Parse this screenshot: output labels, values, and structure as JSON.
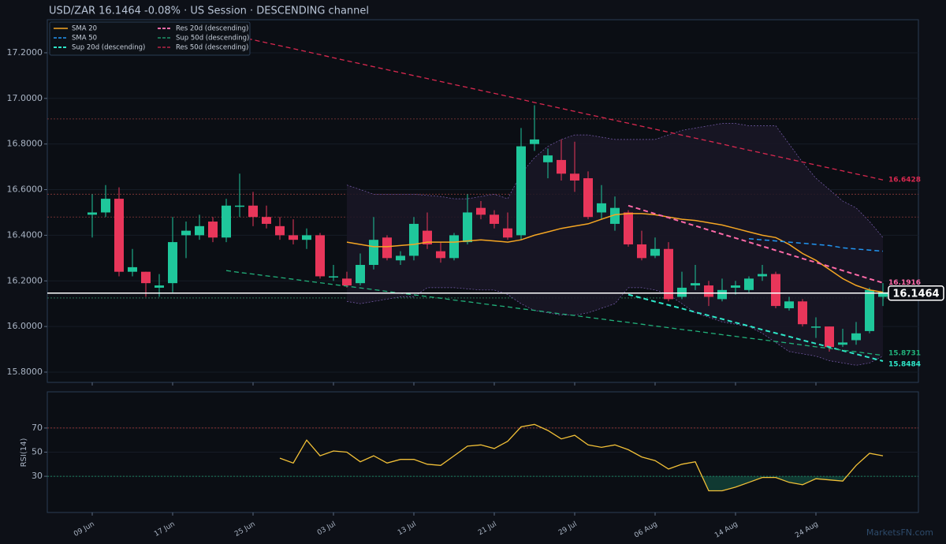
{
  "chart_data": [
    {
      "type": "candlestick",
      "title": "USD/ZAR   16.1464   -0.08%  ·  US Session  ·  DESCENDING channel",
      "price": 16.1464,
      "categories": [
        "09 Jun",
        null,
        null,
        null,
        null,
        null,
        "17 Jun",
        null,
        null,
        null,
        null,
        null,
        "25 Jun",
        null,
        null,
        null,
        null,
        null,
        "03 Jul",
        null,
        null,
        null,
        null,
        null,
        "13 Jul",
        null,
        null,
        null,
        null,
        null,
        "21 Jul",
        null,
        null,
        null,
        null,
        null,
        "29 Jul",
        null,
        null,
        null,
        null,
        null,
        "06 Aug",
        null,
        null,
        null,
        null,
        null,
        "14 Aug",
        null,
        null,
        null,
        null,
        null,
        "24 Aug",
        null,
        null,
        null,
        null,
        null
      ],
      "open": [
        16.49,
        16.5,
        16.56,
        16.24,
        16.24,
        16.17,
        16.19,
        16.4,
        16.4,
        16.46,
        16.39,
        16.53,
        16.53,
        16.48,
        16.44,
        16.4,
        16.38,
        16.4,
        16.22,
        16.21,
        16.19,
        16.27,
        16.39,
        16.29,
        16.31,
        16.42,
        16.33,
        16.3,
        16.37,
        16.52,
        16.49,
        16.43,
        16.4,
        16.8,
        16.72,
        16.73,
        16.67,
        16.65,
        16.5,
        16.45,
        16.5,
        16.36,
        16.31,
        16.34,
        16.13,
        16.18,
        16.18,
        16.12,
        16.17,
        16.16,
        16.22,
        16.23,
        16.08,
        16.11,
        16.0,
        16.0,
        15.92,
        15.94,
        15.98,
        16.13
      ],
      "high": [
        16.58,
        16.62,
        16.61,
        16.34,
        16.24,
        16.23,
        16.48,
        16.46,
        16.49,
        16.48,
        16.56,
        16.67,
        16.59,
        16.53,
        16.48,
        16.47,
        16.43,
        16.41,
        16.27,
        16.24,
        16.32,
        16.48,
        16.4,
        16.33,
        16.48,
        16.5,
        16.37,
        16.41,
        16.58,
        16.55,
        16.51,
        16.5,
        16.87,
        16.97,
        16.78,
        16.82,
        16.81,
        16.68,
        16.62,
        16.57,
        16.51,
        16.42,
        16.39,
        16.37,
        16.24,
        16.27,
        16.2,
        16.21,
        16.2,
        16.22,
        16.27,
        16.24,
        16.13,
        16.12,
        16.04,
        16.0,
        15.99,
        16.02,
        16.17,
        16.19
      ],
      "low": [
        16.39,
        16.48,
        16.22,
        16.22,
        16.13,
        16.13,
        16.15,
        16.3,
        16.38,
        16.37,
        16.37,
        16.48,
        16.44,
        16.43,
        16.38,
        16.36,
        16.34,
        16.21,
        16.2,
        16.17,
        16.18,
        16.25,
        16.29,
        16.27,
        16.29,
        16.34,
        16.28,
        16.29,
        16.36,
        16.47,
        16.43,
        16.38,
        16.38,
        16.77,
        16.65,
        16.64,
        16.59,
        16.47,
        16.47,
        16.42,
        16.35,
        16.29,
        16.3,
        16.11,
        16.12,
        16.16,
        16.09,
        16.11,
        16.14,
        16.15,
        16.2,
        16.08,
        16.07,
        16.0,
        15.95,
        15.89,
        15.91,
        15.92,
        15.97,
        16.09
      ],
      "close": [
        16.5,
        16.56,
        16.24,
        16.26,
        16.19,
        16.18,
        16.37,
        16.42,
        16.44,
        16.39,
        16.53,
        16.53,
        16.48,
        16.45,
        16.4,
        16.38,
        16.4,
        16.22,
        16.22,
        16.18,
        16.27,
        16.38,
        16.3,
        16.31,
        16.45,
        16.36,
        16.3,
        16.4,
        16.5,
        16.49,
        16.45,
        16.39,
        16.79,
        16.82,
        16.75,
        16.67,
        16.64,
        16.48,
        16.54,
        16.52,
        16.36,
        16.3,
        16.34,
        16.12,
        16.17,
        16.19,
        16.13,
        16.16,
        16.18,
        16.21,
        16.23,
        16.09,
        16.11,
        16.01,
        16.0,
        15.91,
        15.93,
        15.97,
        16.16,
        16.15
      ],
      "up_color": "#1fc79b",
      "down_color": "#e8365a",
      "band": {
        "color": "#7a5fb0",
        "upper": [
          null,
          null,
          null,
          null,
          null,
          null,
          null,
          null,
          null,
          null,
          null,
          null,
          null,
          null,
          null,
          null,
          null,
          null,
          null,
          16.62,
          16.6,
          16.58,
          16.58,
          16.58,
          16.58,
          16.575,
          16.57,
          16.56,
          16.56,
          16.57,
          16.58,
          16.56,
          16.67,
          16.74,
          16.79,
          16.82,
          16.84,
          16.84,
          16.83,
          16.82,
          16.82,
          16.82,
          16.82,
          16.84,
          16.86,
          16.87,
          16.88,
          16.89,
          16.89,
          16.88,
          16.88,
          16.88,
          16.8,
          16.72,
          16.65,
          16.6,
          16.55,
          16.52,
          16.46,
          16.39
        ],
        "lower": [
          null,
          null,
          null,
          null,
          null,
          null,
          null,
          null,
          null,
          null,
          null,
          null,
          null,
          null,
          null,
          null,
          null,
          null,
          null,
          16.11,
          16.1,
          16.11,
          16.12,
          16.13,
          16.13,
          16.17,
          16.17,
          16.17,
          16.165,
          16.16,
          16.16,
          16.14,
          16.1,
          16.07,
          16.06,
          16.05,
          16.05,
          16.06,
          16.08,
          16.1,
          16.17,
          16.17,
          16.16,
          16.14,
          16.1,
          16.06,
          16.04,
          16.02,
          16.01,
          16.0,
          15.97,
          15.93,
          15.89,
          15.88,
          15.87,
          15.85,
          15.84,
          15.83,
          15.84,
          15.87
        ]
      },
      "series": [
        {
          "name": "SMA 20",
          "color": "#f5a623",
          "style": "solid",
          "width": 1.5,
          "values": [
            null,
            null,
            null,
            null,
            null,
            null,
            null,
            null,
            null,
            null,
            null,
            null,
            null,
            null,
            null,
            null,
            null,
            null,
            null,
            16.37,
            16.36,
            16.35,
            16.35,
            16.355,
            16.36,
            16.37,
            16.37,
            16.37,
            16.375,
            16.38,
            16.375,
            16.37,
            16.38,
            16.4,
            16.415,
            16.43,
            16.44,
            16.45,
            16.47,
            16.49,
            16.495,
            16.495,
            16.49,
            16.48,
            16.47,
            16.465,
            16.455,
            16.445,
            16.43,
            16.415,
            16.4,
            16.39,
            16.36,
            16.32,
            16.29,
            16.25,
            16.21,
            16.18,
            16.16,
            16.15
          ]
        },
        {
          "name": "SMA 50",
          "color": "#2196f3",
          "style": "dashed",
          "width": 1.5,
          "values": [
            null,
            null,
            null,
            null,
            null,
            null,
            null,
            null,
            null,
            null,
            null,
            null,
            null,
            null,
            null,
            null,
            null,
            null,
            null,
            null,
            null,
            null,
            null,
            null,
            null,
            null,
            null,
            null,
            null,
            null,
            null,
            null,
            null,
            null,
            null,
            null,
            null,
            null,
            null,
            null,
            null,
            null,
            null,
            null,
            null,
            null,
            null,
            null,
            null,
            16.385,
            16.38,
            16.375,
            16.37,
            16.365,
            16.36,
            16.355,
            16.345,
            16.34,
            16.335,
            16.33
          ]
        },
        {
          "name": "Sup 20d (descending)",
          "color": "#2ee6c8",
          "style": "dashed",
          "width": 2,
          "values": [
            null,
            null,
            null,
            null,
            null,
            null,
            null,
            null,
            null,
            null,
            null,
            null,
            null,
            null,
            null,
            null,
            null,
            null,
            null,
            null,
            null,
            null,
            null,
            null,
            null,
            null,
            null,
            null,
            null,
            null,
            null,
            null,
            null,
            null,
            null,
            null,
            null,
            null,
            null,
            null,
            16.14,
            16.125,
            16.109,
            16.094,
            16.079,
            16.063,
            16.048,
            16.033,
            16.017,
            16.002,
            15.986,
            15.971,
            15.956,
            15.94,
            15.925,
            15.91,
            15.894,
            15.879,
            15.864,
            15.8484
          ]
        },
        {
          "name": "Res 20d (descending)",
          "color": "#ff6aa8",
          "style": "dashed",
          "width": 2,
          "values": [
            null,
            null,
            null,
            null,
            null,
            null,
            null,
            null,
            null,
            null,
            null,
            null,
            null,
            null,
            null,
            null,
            null,
            null,
            null,
            null,
            null,
            null,
            null,
            null,
            null,
            null,
            null,
            null,
            null,
            null,
            null,
            null,
            null,
            null,
            null,
            null,
            null,
            null,
            null,
            null,
            16.53,
            16.512,
            16.494,
            16.477,
            16.459,
            16.441,
            16.423,
            16.405,
            16.388,
            16.37,
            16.352,
            16.334,
            16.316,
            16.298,
            16.281,
            16.263,
            16.245,
            16.227,
            16.209,
            16.1916
          ]
        },
        {
          "name": "Sup 50d (descending)",
          "color": "#21b07a",
          "style": "dashed",
          "width": 1.3,
          "values": [
            null,
            null,
            null,
            null,
            null,
            null,
            null,
            null,
            null,
            null,
            16.245,
            16.237,
            16.23,
            16.222,
            16.215,
            16.207,
            16.199,
            16.192,
            16.184,
            16.177,
            16.169,
            16.162,
            16.154,
            16.146,
            16.139,
            16.131,
            16.124,
            16.116,
            16.109,
            16.101,
            16.093,
            16.086,
            16.078,
            16.071,
            16.063,
            16.055,
            16.048,
            16.04,
            16.033,
            16.025,
            16.018,
            16.01,
            16.002,
            15.995,
            15.987,
            15.98,
            15.972,
            15.964,
            15.957,
            15.949,
            15.942,
            15.934,
            15.927,
            15.919,
            15.911,
            15.904,
            15.896,
            15.889,
            15.881,
            15.8731
          ]
        },
        {
          "name": "Res 50d (descending)",
          "color": "#d8284f",
          "style": "dashed",
          "width": 1.3,
          "values": [
            null,
            null,
            null,
            null,
            null,
            null,
            null,
            null,
            null,
            null,
            null,
            17.27,
            17.257,
            17.244,
            17.231,
            17.218,
            17.205,
            17.192,
            17.178,
            17.165,
            17.152,
            17.139,
            17.126,
            17.113,
            17.1,
            17.087,
            17.074,
            17.061,
            17.048,
            17.035,
            17.022,
            17.009,
            16.996,
            16.982,
            16.969,
            16.956,
            16.943,
            16.93,
            16.917,
            16.904,
            16.891,
            16.878,
            16.865,
            16.852,
            16.839,
            16.826,
            16.813,
            16.8,
            16.786,
            16.773,
            16.76,
            16.747,
            16.734,
            16.721,
            16.708,
            16.695,
            16.682,
            16.669,
            16.656,
            16.6428
          ]
        }
      ],
      "levels": [
        {
          "value": 16.91,
          "color": "#8b3a3a"
        },
        {
          "value": 16.58,
          "color": "#8b3a3a"
        },
        {
          "value": 16.48,
          "color": "#8b3a3a"
        },
        {
          "value": 16.125,
          "color": "#2e7d5a"
        }
      ],
      "ylim": [
        15.755,
        17.345
      ],
      "yticks": [
        {
          "value": 15.8,
          "label": "15.8000"
        },
        {
          "value": 16.0,
          "label": "16.0000"
        },
        {
          "value": 16.2,
          "label": "16.2000"
        },
        {
          "value": 16.4,
          "label": "16.4000"
        },
        {
          "value": 16.6,
          "label": "16.6000"
        },
        {
          "value": 16.8,
          "label": "16.8000"
        },
        {
          "value": 17.0,
          "label": "17.0000"
        },
        {
          "value": 17.2,
          "label": "17.2000"
        }
      ],
      "legend": "upper left"
    },
    {
      "type": "line",
      "ylabel": "RSI(14)",
      "color": "#f2c037",
      "values": [
        null,
        null,
        null,
        null,
        null,
        null,
        null,
        null,
        null,
        null,
        null,
        null,
        null,
        null,
        45,
        41,
        60,
        47,
        51,
        50,
        42,
        47,
        41,
        44,
        44,
        40,
        39,
        47,
        55,
        56,
        53,
        59,
        71,
        73,
        68,
        61,
        64,
        56,
        54,
        56,
        52,
        46,
        43,
        36,
        40,
        42,
        18,
        18,
        21,
        25,
        29,
        29,
        25,
        23,
        28,
        27,
        26,
        39,
        49,
        47
      ],
      "levels": [
        {
          "value": 70,
          "color": "#b33a3a"
        },
        {
          "value": 30,
          "color": "#21a070"
        }
      ],
      "fill_below": 30,
      "ylim": [
        0,
        100
      ],
      "yticks": [
        30,
        50,
        70
      ]
    }
  ],
  "watermark": "MarketsFN.com"
}
